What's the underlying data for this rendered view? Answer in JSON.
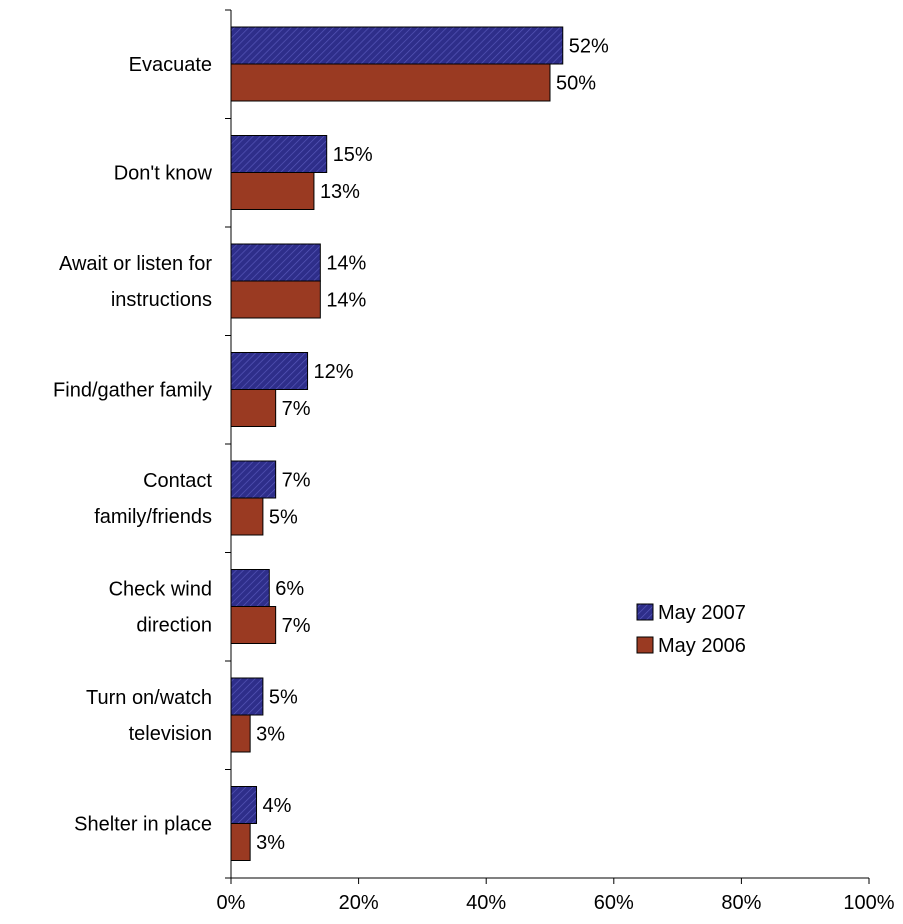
{
  "chart_data": {
    "type": "bar",
    "orientation": "horizontal",
    "categories": [
      [
        "Evacuate"
      ],
      [
        "Don't know"
      ],
      [
        "Await or listen for",
        "instructions"
      ],
      [
        "Find/gather family"
      ],
      [
        "Contact",
        "family/friends"
      ],
      [
        "Check wind",
        "direction"
      ],
      [
        "Turn on/watch",
        "television"
      ],
      [
        "Shelter in place"
      ]
    ],
    "series": [
      {
        "name": "May 2007",
        "values": [
          52,
          15,
          14,
          12,
          7,
          6,
          5,
          4
        ],
        "color": "#2e2e8a",
        "pattern": "diagonal-hatch"
      },
      {
        "name": "May 2006",
        "values": [
          50,
          13,
          14,
          7,
          5,
          7,
          3,
          3
        ],
        "color": "#9a3a22",
        "pattern": "solid"
      }
    ],
    "value_suffix": "%",
    "xlim": [
      0,
      100
    ],
    "xticks": [
      "0%",
      "20%",
      "40%",
      "60%",
      "80%",
      "100%"
    ],
    "grid": false,
    "legend_position": "right"
  }
}
